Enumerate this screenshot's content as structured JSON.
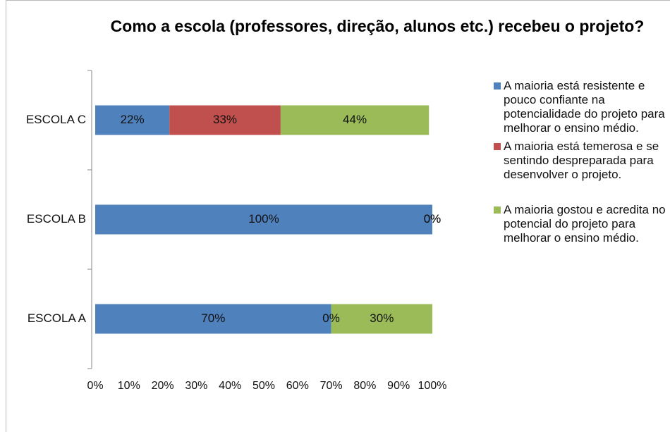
{
  "chart_data": {
    "type": "bar",
    "orientation": "horizontal",
    "stacked": true,
    "title": "Como a escola (professores, direção, alunos etc.) recebeu o projeto?",
    "categories": [
      "ESCOLA A",
      "ESCOLA B",
      "ESCOLA C"
    ],
    "series": [
      {
        "name": "A maioria está resistente e pouco confiante na potencialidade do projeto para melhorar o ensino médio.",
        "color": "#4f81bd",
        "values": [
          70,
          100,
          22
        ],
        "value_labels": [
          "70%",
          "100%",
          "22%"
        ]
      },
      {
        "name": "A maioria está temerosa e se sentindo despreparada para desenvolver o projeto.",
        "color": "#c0504d",
        "values": [
          0,
          0,
          33
        ],
        "value_labels": [
          "0%",
          "0%",
          "33%"
        ]
      },
      {
        "name": "A maioria gostou e acredita no potencial do projeto para melhorar o ensino médio.",
        "color": "#9bbb59",
        "values": [
          30,
          0,
          44
        ],
        "value_labels": [
          "30%",
          "0%",
          "44%"
        ]
      }
    ],
    "xlim": [
      0,
      100
    ],
    "xticks": [
      {
        "value": 0,
        "label": "0%"
      },
      {
        "value": 10,
        "label": "10%"
      },
      {
        "value": 20,
        "label": "20%"
      },
      {
        "value": 30,
        "label": "30%"
      },
      {
        "value": 40,
        "label": "40%"
      },
      {
        "value": 50,
        "label": "50%"
      },
      {
        "value": 60,
        "label": "60%"
      },
      {
        "value": 70,
        "label": "70%"
      },
      {
        "value": 80,
        "label": "80%"
      },
      {
        "value": 90,
        "label": "90%"
      },
      {
        "value": 100,
        "label": "100%"
      }
    ],
    "legend": "right"
  }
}
